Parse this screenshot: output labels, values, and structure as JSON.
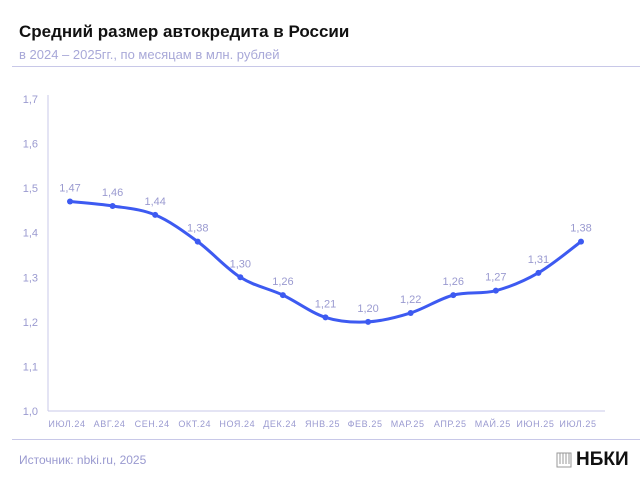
{
  "header": {
    "title": "Средний размер автокредита в России",
    "subtitle": "в 2024 – 2025гг., по месяцам в млн. рублей"
  },
  "footer": {
    "source": "Источник: nbki.ru, 2025",
    "logo": "НБКИ",
    "logo_icon": "nbki-building-icon"
  },
  "colors": {
    "line": "#3d5af1",
    "labels": "#9a9ad0",
    "axis": "#c8c8e8"
  },
  "chart_data": {
    "type": "line",
    "title": "Средний размер автокредита в России",
    "subtitle": "в 2024 – 2025гг., по месяцам в млн. рублей",
    "categories": [
      "ИЮЛ.24",
      "АВГ.24",
      "СЕН.24",
      "ОКТ.24",
      "НОЯ.24",
      "ДЕК.24",
      "ЯНВ.25",
      "ФЕВ.25",
      "МАР.25",
      "АПР.25",
      "МАЙ.25",
      "ИЮН.25",
      "ИЮЛ.25"
    ],
    "values": [
      1.47,
      1.46,
      1.44,
      1.38,
      1.3,
      1.26,
      1.21,
      1.2,
      1.22,
      1.26,
      1.27,
      1.31,
      1.38
    ],
    "data_labels": [
      "1,47",
      "1,46",
      "1,44",
      "1,38",
      "1,30",
      "1,26",
      "1,21",
      "1,20",
      "1,22",
      "1,26",
      "1,27",
      "1,31",
      "1,38"
    ],
    "yticks": [
      "1,0",
      "1,1",
      "1,2",
      "1,3",
      "1,4",
      "1,5",
      "1,6",
      "1,7"
    ],
    "ylim": [
      1.0,
      1.7
    ],
    "grid": false,
    "smooth": true
  }
}
